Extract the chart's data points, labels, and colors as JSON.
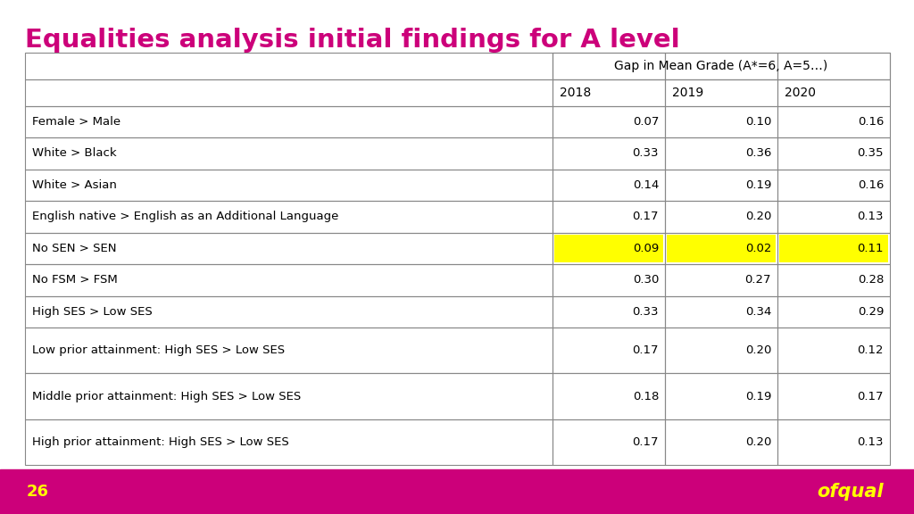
{
  "title": "Equalities analysis initial findings for A level",
  "title_color": "#cc007a",
  "background_color": "#ffffff",
  "footer_bg_color": "#cc007a",
  "footer_text": "26",
  "footer_text_color": "#ffff00",
  "brand_text": "ofqual",
  "brand_color": "#ffff00",
  "col_header_1": "Gap in Mean Grade (A*=6, A=5…)",
  "col_header_years": [
    "2018",
    "2019",
    "2020"
  ],
  "rows": [
    {
      "label": "Female > Male",
      "vals": [
        "0.07",
        "0.10",
        "0.16"
      ],
      "highlight": [
        false,
        false,
        false
      ]
    },
    {
      "label": "White > Black",
      "vals": [
        "0.33",
        "0.36",
        "0.35"
      ],
      "highlight": [
        false,
        false,
        false
      ]
    },
    {
      "label": "White > Asian",
      "vals": [
        "0.14",
        "0.19",
        "0.16"
      ],
      "highlight": [
        false,
        false,
        false
      ]
    },
    {
      "label": "English native > English as an Additional Language",
      "vals": [
        "0.17",
        "0.20",
        "0.13"
      ],
      "highlight": [
        false,
        false,
        false
      ]
    },
    {
      "label": "No SEN > SEN",
      "vals": [
        "0.09",
        "0.02",
        "0.11"
      ],
      "highlight": [
        true,
        true,
        true
      ]
    },
    {
      "label": "No FSM > FSM",
      "vals": [
        "0.30",
        "0.27",
        "0.28"
      ],
      "highlight": [
        false,
        false,
        false
      ]
    },
    {
      "label": "High SES > Low SES",
      "vals": [
        "0.33",
        "0.34",
        "0.29"
      ],
      "highlight": [
        false,
        false,
        false
      ]
    },
    {
      "label": "Low prior attainment: High SES > Low SES",
      "vals": [
        "0.17",
        "0.20",
        "0.12"
      ],
      "highlight": [
        false,
        false,
        false
      ]
    },
    {
      "label": "Middle prior attainment: High SES > Low SES",
      "vals": [
        "0.18",
        "0.19",
        "0.17"
      ],
      "highlight": [
        false,
        false,
        false
      ]
    },
    {
      "label": "High prior attainment: High SES > Low SES",
      "vals": [
        "0.17",
        "0.20",
        "0.13"
      ],
      "highlight": [
        false,
        false,
        false
      ]
    }
  ],
  "highlight_color": "#ffff00",
  "border_color": "#888888",
  "text_color": "#000000",
  "title_fontsize": 21,
  "header_fontsize": 10,
  "data_fontsize": 9.5,
  "fig_width": 10.24,
  "fig_height": 5.76,
  "dpi": 100
}
